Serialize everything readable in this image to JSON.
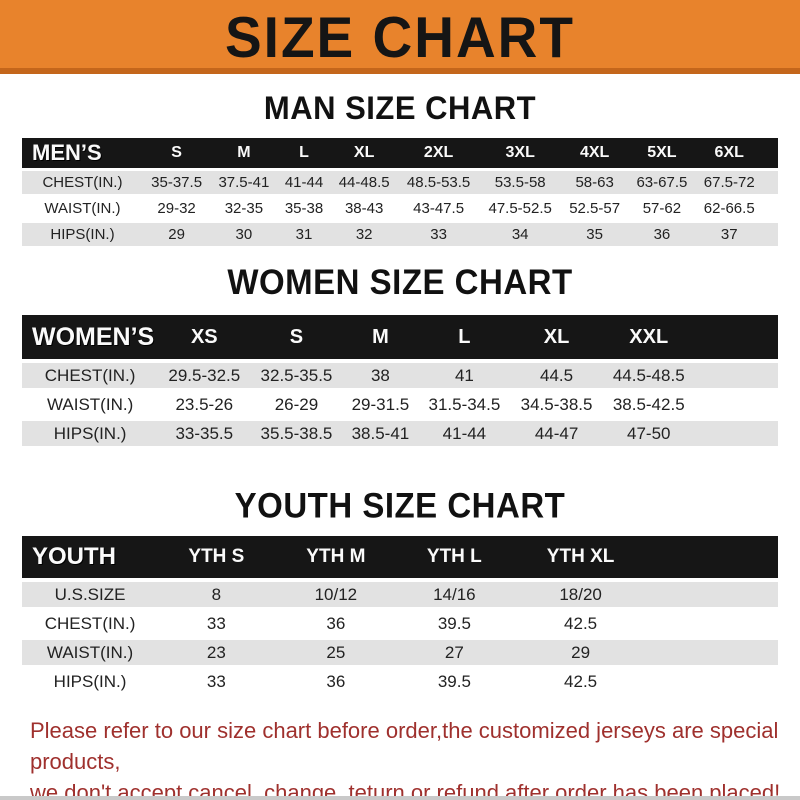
{
  "banner": {
    "title": "SIZE CHART",
    "bg_color": "#E8832C",
    "strip_color": "#C4661B"
  },
  "sections": [
    {
      "title": "MAN SIZE CHART",
      "header_label": "MEN’S",
      "columns": [
        "S",
        "M",
        "L",
        "XL",
        "2XL",
        "3XL",
        "4XL",
        "5XL",
        "6XL"
      ],
      "rows": [
        {
          "label": "CHEST(IN.)",
          "values": [
            "35-37.5",
            "37.5-41",
            "41-44",
            "44-48.5",
            "48.5-53.5",
            "53.5-58",
            "58-63",
            "63-67.5",
            "67.5-72"
          ]
        },
        {
          "label": "WAIST(IN.)",
          "values": [
            "29-32",
            "32-35",
            "35-38",
            "38-43",
            "43-47.5",
            "47.5-52.5",
            "52.5-57",
            "57-62",
            "62-66.5"
          ]
        },
        {
          "label": "HIPS(IN.)",
          "values": [
            "29",
            "30",
            "31",
            "32",
            "33",
            "34",
            "35",
            "36",
            "37"
          ]
        }
      ]
    },
    {
      "title": "WOMEN SIZE CHART",
      "header_label": "WOMEN’S",
      "columns": [
        "XS",
        "S",
        "M",
        "L",
        "XL",
        "XXL"
      ],
      "rows": [
        {
          "label": "CHEST(IN.)",
          "values": [
            "29.5-32.5",
            "32.5-35.5",
            "38",
            "41",
            "44.5",
            "44.5-48.5"
          ]
        },
        {
          "label": "WAIST(IN.)",
          "values": [
            "23.5-26",
            "26-29",
            "29-31.5",
            "31.5-34.5",
            "34.5-38.5",
            "38.5-42.5"
          ]
        },
        {
          "label": "HIPS(IN.)",
          "values": [
            "33-35.5",
            "35.5-38.5",
            "38.5-41",
            "41-44",
            "44-47",
            "47-50"
          ]
        }
      ]
    },
    {
      "title": "YOUTH SIZE CHART",
      "header_label": "YOUTH",
      "columns": [
        "YTH S",
        "YTH M",
        "YTH L",
        "YTH XL"
      ],
      "rows": [
        {
          "label": "U.S.SIZE",
          "values": [
            "8",
            "10/12",
            "14/16",
            "18/20"
          ]
        },
        {
          "label": "CHEST(IN.)",
          "values": [
            "33",
            "36",
            "39.5",
            "42.5"
          ]
        },
        {
          "label": "WAIST(IN.)",
          "values": [
            "23",
            "25",
            "27",
            "29"
          ]
        },
        {
          "label": "HIPS(IN.)",
          "values": [
            "33",
            "36",
            "39.5",
            "42.5"
          ]
        }
      ]
    }
  ],
  "footer": {
    "line1": "Please refer to our size chart before order,the customized jerseys are special products,",
    "line2": "we don't accept cancel, change, teturn or refund after order has been placed!",
    "text_color": "#9F302D"
  }
}
